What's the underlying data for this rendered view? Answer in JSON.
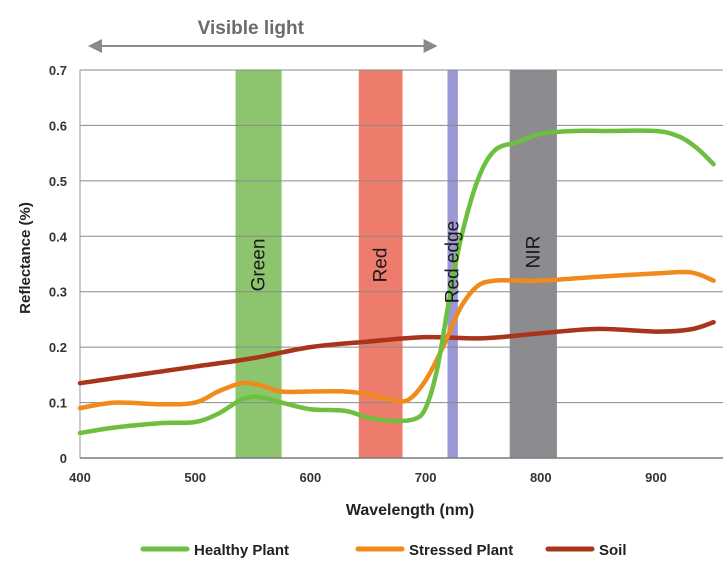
{
  "chart_data": {
    "type": "line",
    "xlabel": "Wavelength (nm)",
    "ylabel": "Reflectance (%)",
    "xlim": [
      400,
      950
    ],
    "ylim": [
      0,
      0.7
    ],
    "x_ticks": [
      400,
      500,
      600,
      700,
      800,
      900
    ],
    "y_ticks": [
      0,
      0.1,
      0.2,
      0.3,
      0.4,
      0.5,
      0.6,
      0.7
    ],
    "x_tick_labels": [
      "400",
      "500",
      "600",
      "700",
      "800",
      "900"
    ],
    "y_tick_labels": [
      "0",
      "0.1",
      "0.2",
      "0.3",
      "0.4",
      "0.5",
      "0.6",
      "0.7"
    ],
    "grid": "horizontal",
    "legend_position": "bottom",
    "visible_light": {
      "label": "Visible light",
      "from": 400,
      "to": 700
    },
    "bands": [
      {
        "name": "Green",
        "from": 535,
        "to": 575,
        "color": "#8cc56d"
      },
      {
        "name": "Red",
        "from": 642,
        "to": 680,
        "color": "#ee7c6d"
      },
      {
        "name": "Red edge",
        "from": 719,
        "to": 728,
        "color": "#9b97d4"
      },
      {
        "name": "NIR",
        "from": 773,
        "to": 814,
        "color": "#8c8b90"
      }
    ],
    "series": [
      {
        "name": "Healthy Plant",
        "color": "#6cbf3f",
        "x": [
          400,
          430,
          470,
          500,
          520,
          540,
          555,
          575,
          600,
          630,
          650,
          670,
          690,
          700,
          710,
          720,
          730,
          745,
          760,
          780,
          800,
          830,
          860,
          900,
          920,
          935,
          950
        ],
        "y": [
          0.045,
          0.055,
          0.063,
          0.065,
          0.08,
          0.105,
          0.11,
          0.1,
          0.088,
          0.085,
          0.073,
          0.067,
          0.07,
          0.09,
          0.16,
          0.28,
          0.39,
          0.5,
          0.555,
          0.57,
          0.585,
          0.59,
          0.59,
          0.59,
          0.58,
          0.56,
          0.53
        ]
      },
      {
        "name": "Stressed Plant",
        "color": "#f08a1d",
        "x": [
          400,
          430,
          470,
          500,
          520,
          540,
          555,
          575,
          600,
          630,
          650,
          670,
          685,
          700,
          715,
          730,
          745,
          760,
          780,
          800,
          850,
          900,
          930,
          950
        ],
        "y": [
          0.09,
          0.1,
          0.097,
          0.1,
          0.12,
          0.135,
          0.132,
          0.12,
          0.12,
          0.12,
          0.115,
          0.105,
          0.105,
          0.14,
          0.2,
          0.27,
          0.31,
          0.32,
          0.32,
          0.32,
          0.327,
          0.333,
          0.335,
          0.32
        ]
      },
      {
        "name": "Soil",
        "color": "#a8341a",
        "x": [
          400,
          450,
          500,
          550,
          600,
          650,
          700,
          750,
          800,
          850,
          900,
          930,
          950
        ],
        "y": [
          0.135,
          0.15,
          0.165,
          0.18,
          0.2,
          0.21,
          0.218,
          0.216,
          0.225,
          0.233,
          0.228,
          0.232,
          0.245
        ]
      }
    ]
  }
}
